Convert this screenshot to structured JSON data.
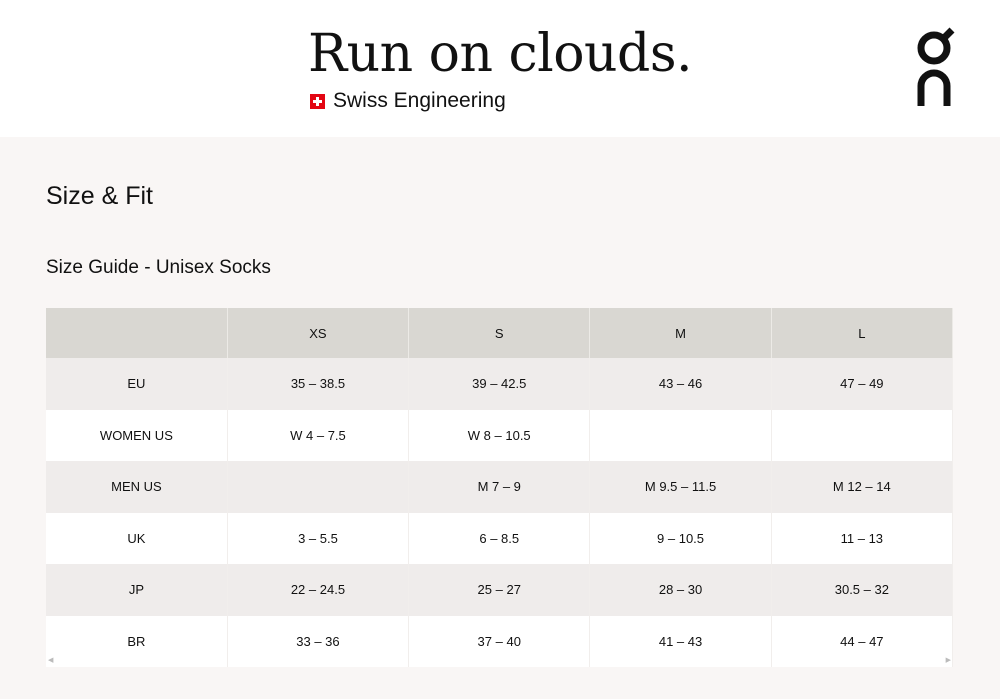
{
  "banner": {
    "tagline": "Run on clouds.",
    "subline": "Swiss Engineering",
    "flag_icon": "swiss-flag-icon",
    "logo": "On",
    "flag_color": "#e30613"
  },
  "page": {
    "title": "Size & Fit",
    "guide_title": "Size Guide - Unisex Socks"
  },
  "table": {
    "headers": [
      "",
      "XS",
      "S",
      "M",
      "L"
    ],
    "rows": [
      [
        "EU",
        "35 – 38.5",
        "39 – 42.5",
        "43 – 46",
        "47 – 49"
      ],
      [
        "WOMEN US",
        "W 4 – 7.5",
        "W 8 – 10.5",
        "",
        ""
      ],
      [
        "MEN US",
        "",
        "M 7 – 9",
        "M 9.5 – 11.5",
        "M 12 – 14"
      ],
      [
        "UK",
        "3 – 5.5",
        "6 – 8.5",
        "9 – 10.5",
        "11 – 13"
      ],
      [
        "JP",
        "22 – 24.5",
        "25 – 27",
        "28 – 30",
        "30.5 – 32"
      ],
      [
        "BR",
        "33 – 36",
        "37 – 40",
        "41 – 43",
        "44 – 47"
      ]
    ]
  }
}
